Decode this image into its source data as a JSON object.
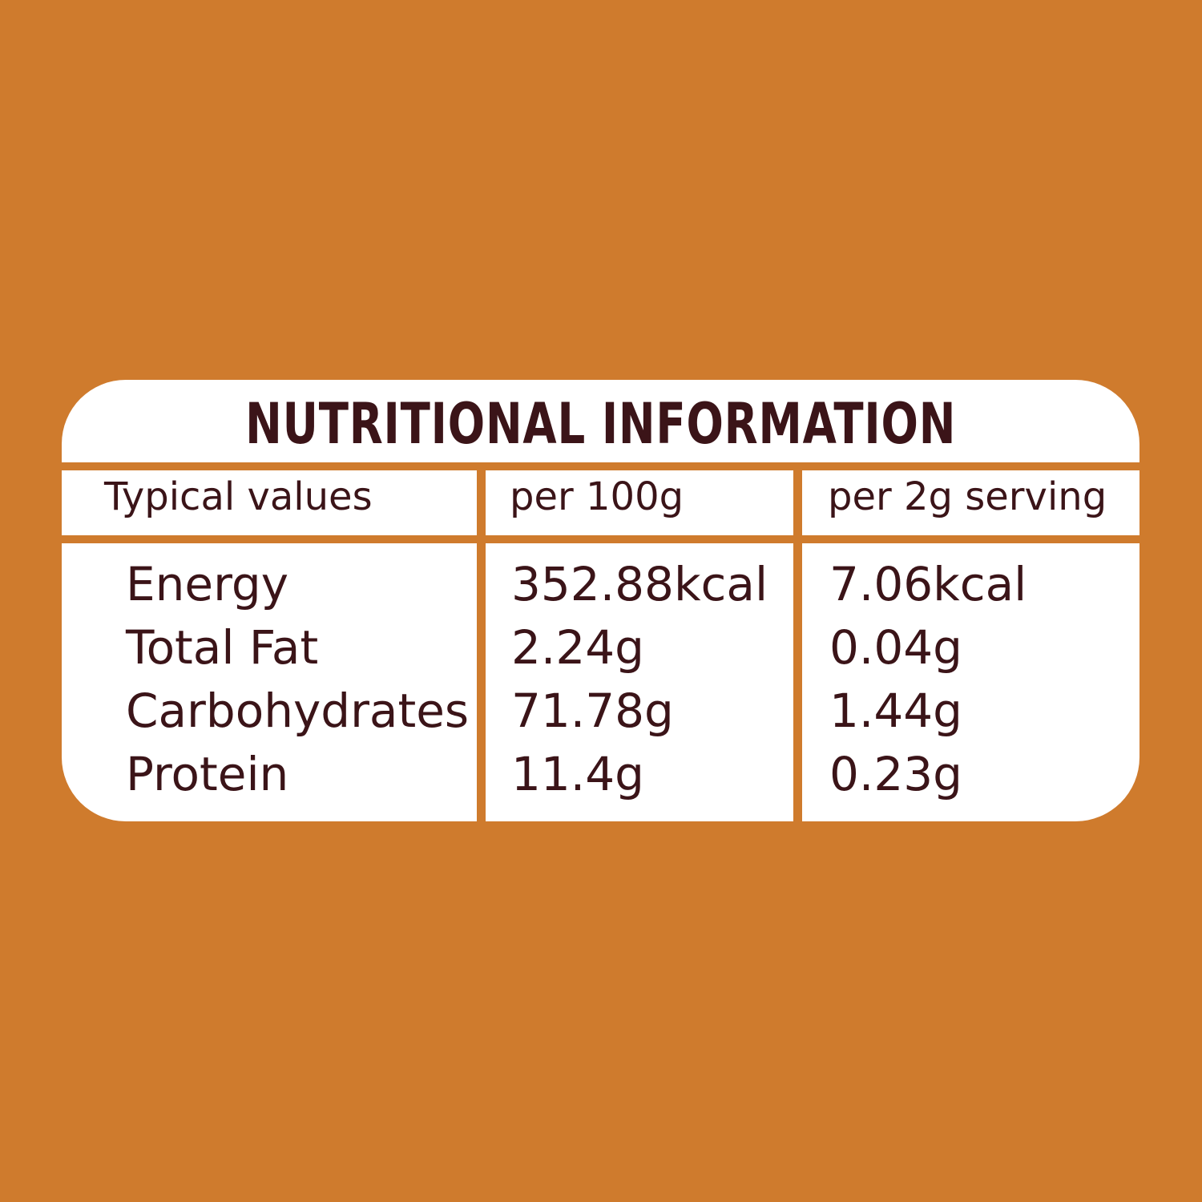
{
  "colors": {
    "background": "#CF7B2D",
    "panel": "#FFFFFF",
    "text": "#3B1418"
  },
  "title": "NUTRITIONAL INFORMATION",
  "headers": [
    "Typical values",
    "per 100g",
    "per 2g serving"
  ],
  "rows": [
    {
      "label": "Energy",
      "per_100g": "352.88kcal",
      "per_serving": "7.06kcal"
    },
    {
      "label": "Total Fat",
      "per_100g": "2.24g",
      "per_serving": "0.04g"
    },
    {
      "label": "Carbohydrates",
      "per_100g": "71.78g",
      "per_serving": "1.44g"
    },
    {
      "label": "Protein",
      "per_100g": "11.4g",
      "per_serving": "0.23g"
    }
  ]
}
